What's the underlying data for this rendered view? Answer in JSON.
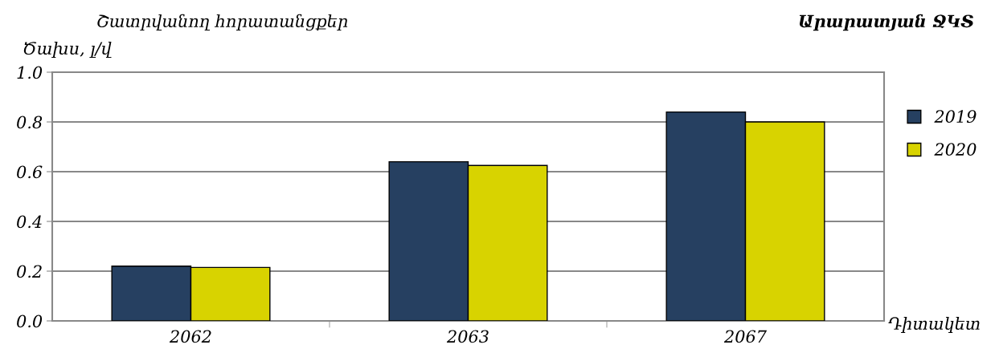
{
  "chart_data": {
    "type": "bar",
    "title": "Շատրվանող հորատանցքեր",
    "subtitle": "Արարատյան ՋԿՏ",
    "ylabel": "Ծախս, լ/վ",
    "xlabel": "Դիտակետ",
    "categories": [
      "2062",
      "2063",
      "2067"
    ],
    "series": [
      {
        "name": "2019",
        "color": "#264061",
        "values": [
          0.22,
          0.64,
          0.84
        ]
      },
      {
        "name": "2020",
        "color": "#d8d300",
        "values": [
          0.215,
          0.625,
          0.8
        ]
      }
    ],
    "ylim": [
      0,
      1.0
    ],
    "yticks": [
      {
        "value": 0,
        "label": "0.0"
      },
      0.2,
      0.4,
      0.6,
      0.8,
      {
        "value": 1.0,
        "label": "1.0"
      }
    ],
    "grid": "y",
    "legend": "right"
  }
}
